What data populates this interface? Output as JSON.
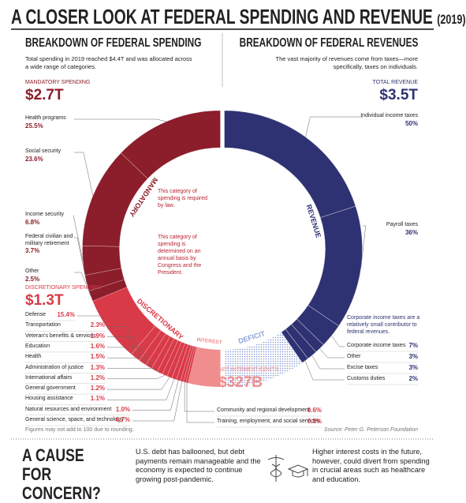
{
  "header": {
    "title": "A CLOSER LOOK AT FEDERAL SPENDING AND REVENUE",
    "year": "(2019)"
  },
  "chart_data": {
    "type": "split-donut",
    "spending": {
      "title": "BREAKDOWN OF FEDERAL SPENDING",
      "subtitle": "Total spending in 2019 reached $4.4T and was allocated across a wide range of categories.",
      "groups": [
        {
          "name": "MANDATORY SPENDING",
          "ring_label": "MANDATORY",
          "note": "This category of spending is required by law.",
          "color": "#8c1d2a",
          "value": 2.7,
          "value_label": "$2.7T",
          "items": [
            {
              "name": "Health programs",
              "value": 25.5,
              "value_label": "25.5%"
            },
            {
              "name": "Social security",
              "value": 23.6,
              "value_label": "23.6%"
            },
            {
              "name": "Income security",
              "value": 6.8,
              "value_label": "6.8%"
            },
            {
              "name": "Federal civilian and military retirement",
              "value": 3.7,
              "value_label": "3.7%"
            },
            {
              "name": "Other",
              "value": 2.5,
              "value_label": "2.5%"
            }
          ]
        },
        {
          "name": "DISCRETIONARY SPENDING",
          "ring_label": "DISCRETIONARY",
          "note": "This category of spending is determined on an annual basis by Congress and the President.",
          "color": "#d93a48",
          "value": 1.3,
          "value_label": "$1.3T",
          "items": [
            {
              "name": "Defense",
              "value": 15.4,
              "value_label": "15.4%"
            },
            {
              "name": "Transportation",
              "value": 2.3,
              "value_label": "2.3%"
            },
            {
              "name": "Veteran's benefits & services",
              "value": 1.9,
              "value_label": "1.9%"
            },
            {
              "name": "Education",
              "value": 1.6,
              "value_label": "1.6%"
            },
            {
              "name": "Health",
              "value": 1.5,
              "value_label": "1.5%"
            },
            {
              "name": "Administration of justice",
              "value": 1.3,
              "value_label": "1.3%"
            },
            {
              "name": "International affairs",
              "value": 1.2,
              "value_label": "1.2%"
            },
            {
              "name": "General government",
              "value": 1.2,
              "value_label": "1.2%"
            },
            {
              "name": "Housing assistance",
              "value": 1.1,
              "value_label": "1.1%"
            },
            {
              "name": "Natural resources and environment",
              "value": 1.0,
              "value_label": "1.0%"
            },
            {
              "name": "General science, space, and technology",
              "value": 0.7,
              "value_label": "0.7%"
            },
            {
              "name": "Community and regional development",
              "value": 0.6,
              "value_label": "0.6%"
            },
            {
              "name": "Training, employment, and social services",
              "value": 0.5,
              "value_label": "0.5%"
            }
          ]
        },
        {
          "name": "NET INTEREST COSTS",
          "ring_label": "INTEREST",
          "color": "#f08d8d",
          "value": 0.327,
          "value_label": "$327B",
          "items": []
        }
      ]
    },
    "revenue": {
      "title": "BREAKDOWN OF FEDERAL REVENUES",
      "subtitle": "The vast majority of revenues come from taxes—more specifically, taxes on individuals.",
      "name": "TOTAL REVENUE",
      "ring_label": "REVENUE",
      "color": "#2e3272",
      "value": 3.5,
      "value_label": "$3.5T",
      "note": "Corporate income taxes are a relatively small contributor to federal revenues.",
      "gap_label": "DEFICIT",
      "gap_color": "#8ea2dc",
      "items": [
        {
          "name": "Individual income taxes",
          "value": 50,
          "value_label": "50%"
        },
        {
          "name": "Payroll taxes",
          "value": 36,
          "value_label": "36%"
        },
        {
          "name": "Corporate income taxes",
          "value": 7,
          "value_label": "7%"
        },
        {
          "name": "Other",
          "value": 3,
          "value_label": "3%"
        },
        {
          "name": "Excise taxes",
          "value": 3,
          "value_label": "3%"
        },
        {
          "name": "Customs duties",
          "value": 2,
          "value_label": "2%"
        }
      ]
    },
    "footnote": "Figures may not add to 100 due to rounding.",
    "source": "Source: Peter G. Peterson Foundation"
  },
  "concern": {
    "title": "A CAUSE FOR CONCERN?",
    "text_1": "U.S. debt has ballooned, but debt payments remain manageable and the economy is expected to continue growing post-pandemic.",
    "text_2": "Higher interest costs in the future, however, could divert from spending in crucial areas such as healthcare and education."
  }
}
